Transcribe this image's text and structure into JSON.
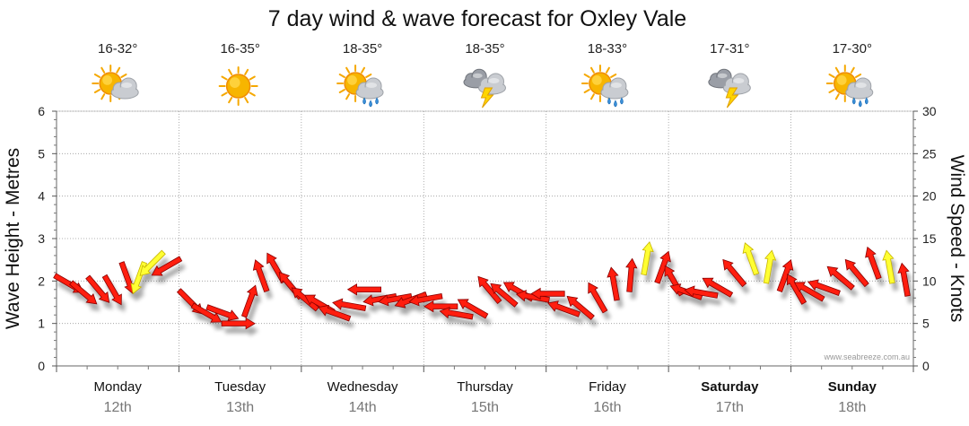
{
  "chart_data": {
    "type": "line",
    "title": "7 day wind & wave forecast for Oxley Vale",
    "ylabel_left": "Wave Height - Metres",
    "ylabel_right": "Wind Speed - Knots",
    "ylim_left": [
      0,
      6
    ],
    "ylim_right": [
      0,
      30
    ],
    "yticks_left": [
      0,
      1,
      2,
      3,
      4,
      5,
      6
    ],
    "yticks_right": [
      0,
      5,
      10,
      15,
      20,
      25,
      30
    ],
    "grid": true,
    "credit": "www.seabreeze.com.au",
    "days": [
      {
        "name": "Monday",
        "date": "12th",
        "temp": "16-32°",
        "icon": "partly-cloudy-icon",
        "bold": false
      },
      {
        "name": "Tuesday",
        "date": "13th",
        "temp": "16-35°",
        "icon": "sunny-icon",
        "bold": false
      },
      {
        "name": "Wednesday",
        "date": "14th",
        "temp": "18-35°",
        "icon": "partly-cloudy-showers-icon",
        "bold": false
      },
      {
        "name": "Thursday",
        "date": "15th",
        "temp": "18-35°",
        "icon": "storm-cloud-icon",
        "bold": false
      },
      {
        "name": "Friday",
        "date": "16th",
        "temp": "18-33°",
        "icon": "partly-cloudy-showers-icon",
        "bold": false
      },
      {
        "name": "Saturday",
        "date": "17th",
        "temp": "17-31°",
        "icon": "storm-cloud-icon",
        "bold": true
      },
      {
        "name": "Sunday",
        "date": "18th",
        "temp": "17-30°",
        "icon": "partly-cloudy-showers-icon",
        "bold": true
      }
    ],
    "series": [
      {
        "name": "Wind Speed (knots)",
        "hours_per_point": 3,
        "values": [
          10,
          9,
          9.5,
          9.5,
          11,
          11,
          12.5,
          12,
          8,
          6.5,
          6.5,
          5,
          7,
          10,
          11,
          9,
          7.5,
          7,
          6,
          7,
          9,
          8,
          8,
          8,
          8,
          7,
          6,
          6.5,
          8.5,
          8,
          8.5,
          8,
          8.5,
          6.5,
          6.5,
          7.5,
          9,
          10,
          12,
          11,
          9.5,
          8.5,
          8.5,
          9,
          10.5,
          12,
          11,
          10,
          8.5,
          8.5,
          9,
          10,
          10.5,
          11.5,
          11,
          9.5
        ],
        "direction_deg": [
          300,
          310,
          320,
          330,
          340,
          20,
          45,
          60,
          315,
          300,
          290,
          270,
          200,
          160,
          150,
          140,
          130,
          120,
          110,
          100,
          90,
          80,
          80,
          70,
          80,
          90,
          100,
          120,
          140,
          130,
          120,
          100,
          90,
          110,
          130,
          150,
          170,
          185,
          190,
          200,
          150,
          110,
          100,
          120,
          140,
          160,
          190,
          200,
          150,
          120,
          110,
          130,
          140,
          160,
          170,
          170
        ],
        "highlight": [
          false,
          false,
          false,
          false,
          false,
          true,
          true,
          false,
          false,
          false,
          false,
          false,
          false,
          false,
          false,
          false,
          false,
          false,
          false,
          false,
          false,
          false,
          false,
          false,
          false,
          false,
          false,
          false,
          false,
          false,
          false,
          false,
          false,
          false,
          false,
          false,
          false,
          false,
          true,
          false,
          false,
          false,
          false,
          false,
          false,
          true,
          true,
          false,
          false,
          false,
          false,
          false,
          false,
          false,
          true,
          false
        ]
      }
    ]
  }
}
